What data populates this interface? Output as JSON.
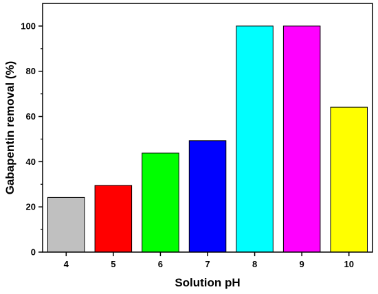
{
  "chart_data": {
    "type": "bar",
    "categories": [
      "4",
      "5",
      "6",
      "7",
      "8",
      "9",
      "10"
    ],
    "values": [
      24.2,
      29.5,
      43.8,
      49.3,
      100,
      100,
      64.1
    ],
    "colors": [
      "#c0c0c0",
      "#ff0000",
      "#00ff00",
      "#0000ff",
      "#00ffff",
      "#ff00ff",
      "#ffff00"
    ],
    "xlabel": "Solution pH",
    "ylabel": "Gabapentin removal (%)",
    "ylim": [
      0,
      110
    ],
    "yticks": [
      0,
      20,
      40,
      60,
      80,
      100
    ],
    "grid": false,
    "legend": "none"
  }
}
